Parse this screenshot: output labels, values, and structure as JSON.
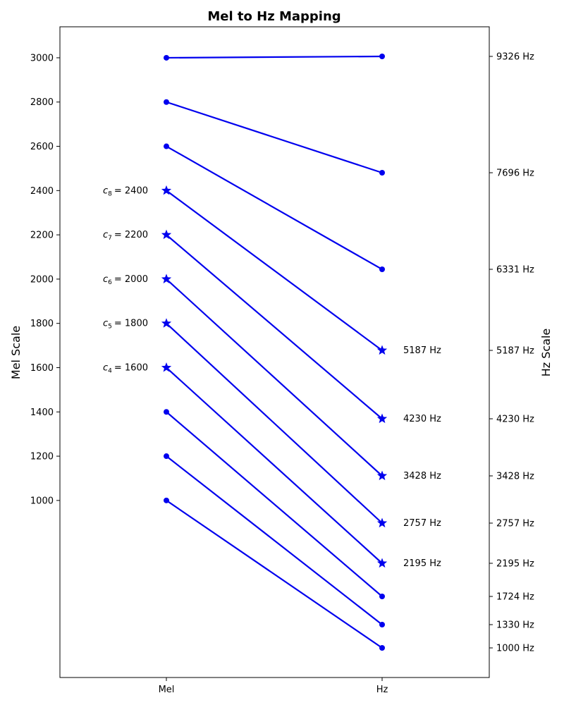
{
  "chart_data": {
    "type": "line",
    "title": "Mel to Hz Mapping",
    "ylabel_left": "Mel Scale",
    "ylabel_right": "Hz Scale",
    "categories": [
      "Mel",
      "Hz"
    ],
    "mel_ticks": [
      1000,
      1200,
      1400,
      1600,
      1800,
      2000,
      2200,
      2400,
      2600,
      2800,
      3000
    ],
    "mel_ylim": [
      200,
      3140
    ],
    "hz_ticks": [
      "1000 Hz",
      "1330 Hz",
      "1724 Hz",
      "2195 Hz",
      "2757 Hz",
      "3428 Hz",
      "4230 Hz",
      "5187 Hz",
      "6331 Hz",
      "7696 Hz",
      "9326 Hz"
    ],
    "line_color": "#0000ee",
    "series": [
      {
        "mel": 1000,
        "hz": 1000,
        "highlighted": false
      },
      {
        "mel": 1200,
        "hz": 1330,
        "highlighted": false
      },
      {
        "mel": 1400,
        "hz": 1724,
        "highlighted": false
      },
      {
        "mel": 1600,
        "hz": 2195,
        "highlighted": true,
        "mel_label": "c",
        "mel_label_sub": "4",
        "mel_label_value": "= 1600",
        "hz_label": "2195 Hz"
      },
      {
        "mel": 1800,
        "hz": 2757,
        "highlighted": true,
        "mel_label": "c",
        "mel_label_sub": "5",
        "mel_label_value": "= 1800",
        "hz_label": "2757 Hz"
      },
      {
        "mel": 2000,
        "hz": 3428,
        "highlighted": true,
        "mel_label": "c",
        "mel_label_sub": "6",
        "mel_label_value": "= 2000",
        "hz_label": "3428 Hz"
      },
      {
        "mel": 2200,
        "hz": 4230,
        "highlighted": true,
        "mel_label": "c",
        "mel_label_sub": "7",
        "mel_label_value": "= 2200",
        "hz_label": "4230 Hz"
      },
      {
        "mel": 2400,
        "hz": 5187,
        "highlighted": true,
        "mel_label": "c",
        "mel_label_sub": "8",
        "mel_label_value": "= 2400",
        "hz_label": "5187 Hz"
      },
      {
        "mel": 2600,
        "hz": 6331,
        "highlighted": false
      },
      {
        "mel": 2800,
        "hz": 7696,
        "highlighted": false
      },
      {
        "mel": 3000,
        "hz": 9326,
        "highlighted": false
      }
    ]
  }
}
